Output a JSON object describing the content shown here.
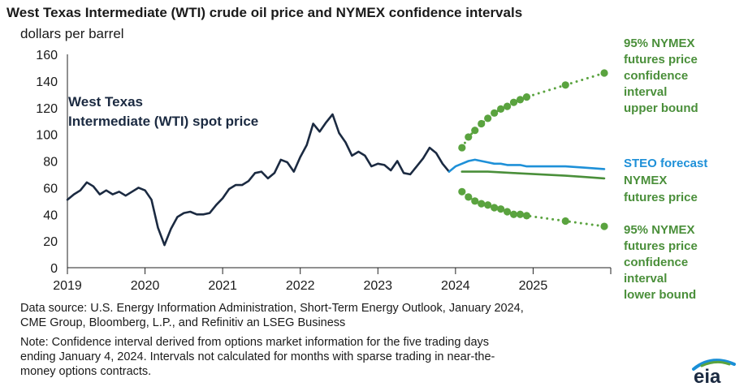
{
  "header": {
    "title": "West Texas Intermediate (WTI) crude oil price and NYMEX confidence intervals",
    "units": "dollars per barrel"
  },
  "footer": {
    "source_lines": [
      "Data source: U.S. Energy Information Administration, Short-Term Energy Outlook, January 2024,",
      "CME Group, Bloomberg, L.P., and Refinitiv an LSEG Business"
    ],
    "note_lines": [
      "Note: Confidence interval derived from options market information for the five trading days",
      "ending January 4, 2024. Intervals not calculated for months with sparse trading in near-the-",
      "money options contracts."
    ],
    "logo_text": "eia"
  },
  "colors": {
    "wti": "#1b2a41",
    "steo": "#1e90d8",
    "nymex": "#4a8f3a",
    "ci": "#5aa33f",
    "axis": "#222222",
    "grid": "#dddddd"
  },
  "chart_data": {
    "type": "line",
    "title": "West Texas Intermediate (WTI) crude oil price and NYMEX confidence intervals",
    "ylabel": "dollars per barrel",
    "xlabel": "",
    "ylim": [
      0,
      160
    ],
    "yticks": [
      0,
      20,
      40,
      60,
      80,
      100,
      120,
      140,
      160
    ],
    "xlim": [
      "2019-01",
      "2025-12"
    ],
    "xticks": [
      "2019",
      "2020",
      "2021",
      "2022",
      "2023",
      "2024",
      "2025"
    ],
    "grid": false,
    "series": [
      {
        "name": "West Texas Intermediate (WTI) spot price",
        "label_lines": [
          "West Texas",
          "Intermediate (WTI) spot price"
        ],
        "style": "solid",
        "color_key": "wti",
        "points": [
          [
            "2019-01",
            51
          ],
          [
            "2019-02",
            55
          ],
          [
            "2019-03",
            58
          ],
          [
            "2019-04",
            64
          ],
          [
            "2019-05",
            61
          ],
          [
            "2019-06",
            55
          ],
          [
            "2019-07",
            58
          ],
          [
            "2019-08",
            55
          ],
          [
            "2019-09",
            57
          ],
          [
            "2019-10",
            54
          ],
          [
            "2019-11",
            57
          ],
          [
            "2019-12",
            60
          ],
          [
            "2020-01",
            58
          ],
          [
            "2020-02",
            51
          ],
          [
            "2020-03",
            30
          ],
          [
            "2020-04",
            17
          ],
          [
            "2020-05",
            29
          ],
          [
            "2020-06",
            38
          ],
          [
            "2020-07",
            41
          ],
          [
            "2020-08",
            42
          ],
          [
            "2020-09",
            40
          ],
          [
            "2020-10",
            40
          ],
          [
            "2020-11",
            41
          ],
          [
            "2020-12",
            47
          ],
          [
            "2021-01",
            52
          ],
          [
            "2021-02",
            59
          ],
          [
            "2021-03",
            62
          ],
          [
            "2021-04",
            62
          ],
          [
            "2021-05",
            65
          ],
          [
            "2021-06",
            71
          ],
          [
            "2021-07",
            72
          ],
          [
            "2021-08",
            67
          ],
          [
            "2021-09",
            71
          ],
          [
            "2021-10",
            81
          ],
          [
            "2021-11",
            79
          ],
          [
            "2021-12",
            72
          ],
          [
            "2022-01",
            83
          ],
          [
            "2022-02",
            92
          ],
          [
            "2022-03",
            108
          ],
          [
            "2022-04",
            102
          ],
          [
            "2022-05",
            109
          ],
          [
            "2022-06",
            115
          ],
          [
            "2022-07",
            101
          ],
          [
            "2022-08",
            94
          ],
          [
            "2022-09",
            84
          ],
          [
            "2022-10",
            87
          ],
          [
            "2022-11",
            84
          ],
          [
            "2022-12",
            76
          ],
          [
            "2023-01",
            78
          ],
          [
            "2023-02",
            77
          ],
          [
            "2023-03",
            73
          ],
          [
            "2023-04",
            80
          ],
          [
            "2023-05",
            71
          ],
          [
            "2023-06",
            70
          ],
          [
            "2023-07",
            76
          ],
          [
            "2023-08",
            82
          ],
          [
            "2023-09",
            90
          ],
          [
            "2023-10",
            86
          ],
          [
            "2023-11",
            78
          ],
          [
            "2023-12",
            72
          ]
        ]
      },
      {
        "name": "STEO forecast",
        "label_lines": [
          "STEO forecast"
        ],
        "style": "solid",
        "color_key": "steo",
        "points": [
          [
            "2023-12",
            72
          ],
          [
            "2024-01",
            76
          ],
          [
            "2024-02",
            78
          ],
          [
            "2024-03",
            80
          ],
          [
            "2024-04",
            81
          ],
          [
            "2024-05",
            80
          ],
          [
            "2024-06",
            79
          ],
          [
            "2024-07",
            78
          ],
          [
            "2024-08",
            78
          ],
          [
            "2024-09",
            77
          ],
          [
            "2024-10",
            77
          ],
          [
            "2024-11",
            77
          ],
          [
            "2024-12",
            76
          ],
          [
            "2025-03",
            76
          ],
          [
            "2025-06",
            76
          ],
          [
            "2025-09",
            75
          ],
          [
            "2025-12",
            74
          ]
        ]
      },
      {
        "name": "NYMEX futures price",
        "label_lines": [
          "NYMEX",
          "futures price"
        ],
        "style": "solid",
        "color_key": "nymex",
        "points": [
          [
            "2024-02",
            72
          ],
          [
            "2024-06",
            72
          ],
          [
            "2024-10",
            71
          ],
          [
            "2025-02",
            70
          ],
          [
            "2025-06",
            69
          ],
          [
            "2025-09",
            68
          ],
          [
            "2025-12",
            67
          ]
        ]
      },
      {
        "name": "95% NYMEX futures price confidence interval upper bound",
        "label_lines": [
          "95% NYMEX",
          "futures price",
          "confidence",
          "interval",
          "upper bound"
        ],
        "style": "dotted-markers",
        "color_key": "ci",
        "points": [
          [
            "2024-02",
            90
          ],
          [
            "2024-03",
            98
          ],
          [
            "2024-04",
            103
          ],
          [
            "2024-05",
            108
          ],
          [
            "2024-06",
            112
          ],
          [
            "2024-07",
            116
          ],
          [
            "2024-08",
            119
          ],
          [
            "2024-09",
            121
          ],
          [
            "2024-10",
            124
          ],
          [
            "2024-11",
            126
          ],
          [
            "2024-12",
            128
          ],
          [
            "2025-06",
            137
          ],
          [
            "2025-12",
            146
          ]
        ]
      },
      {
        "name": "95% NYMEX futures price confidence interval lower bound",
        "label_lines": [
          "95% NYMEX",
          "futures price",
          "confidence",
          "interval",
          "lower bound"
        ],
        "style": "dotted-markers",
        "color_key": "ci",
        "points": [
          [
            "2024-02",
            57
          ],
          [
            "2024-03",
            53
          ],
          [
            "2024-04",
            50
          ],
          [
            "2024-05",
            48
          ],
          [
            "2024-06",
            47
          ],
          [
            "2024-07",
            45
          ],
          [
            "2024-08",
            44
          ],
          [
            "2024-09",
            42
          ],
          [
            "2024-10",
            40
          ],
          [
            "2024-11",
            40
          ],
          [
            "2024-12",
            39
          ],
          [
            "2025-06",
            35
          ],
          [
            "2025-12",
            31
          ]
        ]
      }
    ]
  }
}
